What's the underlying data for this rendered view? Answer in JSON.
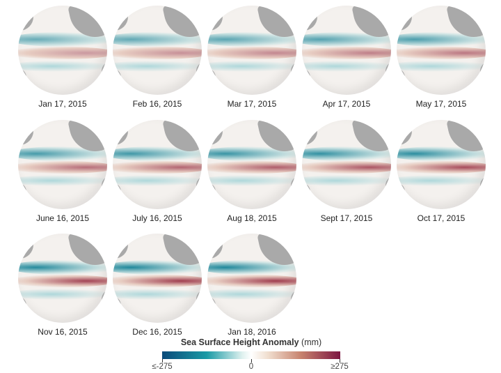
{
  "panels": [
    {
      "label": "Jan 17, 2015"
    },
    {
      "label": "Feb 16, 2015"
    },
    {
      "label": "Mar 17, 2015"
    },
    {
      "label": "Apr 17, 2015"
    },
    {
      "label": "May 17, 2015"
    },
    {
      "label": "June 16, 2015"
    },
    {
      "label": "July 16, 2015"
    },
    {
      "label": "Aug 18, 2015"
    },
    {
      "label": "Sept 17, 2015"
    },
    {
      "label": "Oct 17, 2015"
    },
    {
      "label": "Nov 16, 2015"
    },
    {
      "label": "Dec 16, 2015"
    },
    {
      "label": "Jan 18, 2016"
    }
  ],
  "legend": {
    "title": "Sea Surface Height Anomaly",
    "unit": "(mm)",
    "min_label": "≤-275",
    "mid_label": "0",
    "max_label": "≥275",
    "colors": {
      "low": "#0a4a7a",
      "mid": "#ffffff",
      "high": "#7d1742",
      "land": "#a9a9a9"
    }
  }
}
